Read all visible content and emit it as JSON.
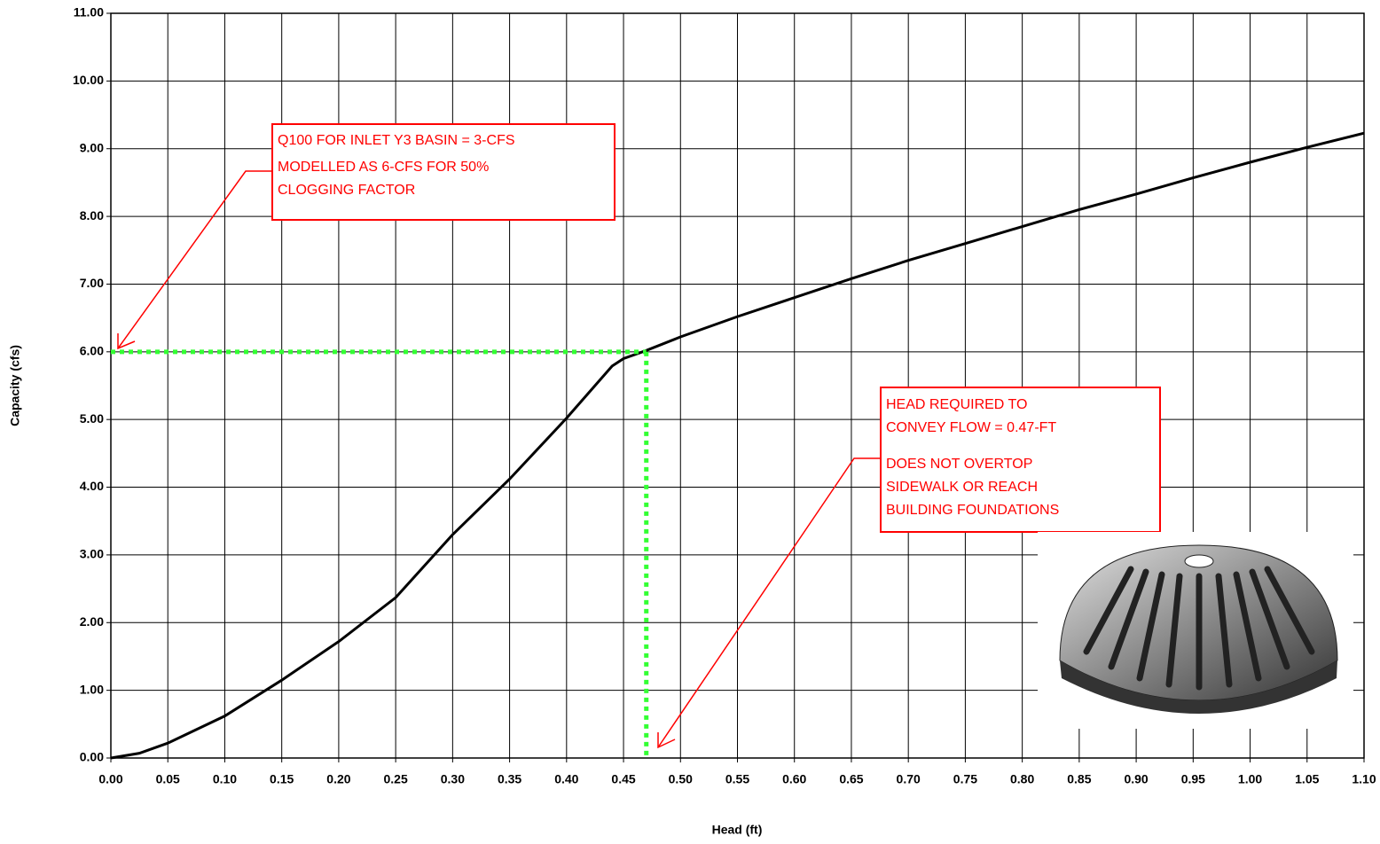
{
  "chart_data": {
    "type": "line",
    "x_label": "Head (ft)",
    "y_label": "Capacity (cfs)",
    "x": [
      0,
      0.025,
      0.05,
      0.1,
      0.15,
      0.2,
      0.25,
      0.3,
      0.35,
      0.4,
      0.44,
      0.45,
      0.47,
      0.5,
      0.55,
      0.6,
      0.65,
      0.7,
      0.75,
      0.8,
      0.85,
      0.9,
      0.95,
      1.0,
      1.05,
      1.1
    ],
    "values": [
      0,
      0.07,
      0.22,
      0.62,
      1.15,
      1.72,
      2.37,
      3.3,
      4.12,
      5.02,
      5.79,
      5.9,
      6.02,
      6.22,
      6.52,
      6.8,
      7.08,
      7.35,
      7.6,
      7.85,
      8.1,
      8.33,
      8.57,
      8.8,
      9.02,
      9.23
    ],
    "color": "#000000",
    "reference": {
      "x": 0.47,
      "y": 6,
      "color": "#33ff33"
    },
    "xlim": [
      0,
      1.1
    ],
    "ylim": [
      0,
      11
    ],
    "xticks": [
      {
        "value": 0,
        "label": "0.00"
      },
      {
        "value": 0.05,
        "label": "0.05"
      },
      {
        "value": 0.1,
        "label": "0.10"
      },
      {
        "value": 0.15,
        "label": "0.15"
      },
      {
        "value": 0.2,
        "label": "0.20"
      },
      {
        "value": 0.25,
        "label": "0.25"
      },
      {
        "value": 0.3,
        "label": "0.30"
      },
      {
        "value": 0.35,
        "label": "0.35"
      },
      {
        "value": 0.4,
        "label": "0.40"
      },
      {
        "value": 0.45,
        "label": "0.45"
      },
      {
        "value": 0.5,
        "label": "0.50"
      },
      {
        "value": 0.55,
        "label": "0.55"
      },
      {
        "value": 0.6,
        "label": "0.60"
      },
      {
        "value": 0.65,
        "label": "0.65"
      },
      {
        "value": 0.7,
        "label": "0.70"
      },
      {
        "value": 0.75,
        "label": "0.75"
      },
      {
        "value": 0.8,
        "label": "0.80"
      },
      {
        "value": 0.85,
        "label": "0.85"
      },
      {
        "value": 0.9,
        "label": "0.90"
      },
      {
        "value": 0.95,
        "label": "0.95"
      },
      {
        "value": 1.0,
        "label": "1.00"
      },
      {
        "value": 1.05,
        "label": "1.05"
      },
      {
        "value": 1.1,
        "label": "1.10"
      }
    ],
    "yticks": [
      {
        "value": 0,
        "label": "0.00"
      },
      {
        "value": 1,
        "label": "1.00"
      },
      {
        "value": 2,
        "label": "2.00"
      },
      {
        "value": 3,
        "label": "3.00"
      },
      {
        "value": 4,
        "label": "4.00"
      },
      {
        "value": 5,
        "label": "5.00"
      },
      {
        "value": 6,
        "label": "6.00"
      },
      {
        "value": 7,
        "label": "7.00"
      },
      {
        "value": 8,
        "label": "8.00"
      },
      {
        "value": 9,
        "label": "9.00"
      },
      {
        "value": 10,
        "label": "10.00"
      },
      {
        "value": 11,
        "label": "11.00"
      }
    ],
    "grid": true,
    "annotations": [
      {
        "paragraphs": [
          [
            "Q100 FOR INLET Y3 BASIN = 3-CFS"
          ],
          [
            "MODELLED AS 6-CFS FOR 50%",
            "CLOGGING FACTOR"
          ]
        ]
      },
      {
        "paragraphs": [
          [
            "HEAD REQUIRED TO",
            "CONVEY FLOW = 0.47-FT"
          ],
          [
            "DOES NOT OVERTOP",
            "SIDEWALK OR REACH",
            "BUILDING FOUNDATIONS"
          ]
        ]
      }
    ]
  }
}
